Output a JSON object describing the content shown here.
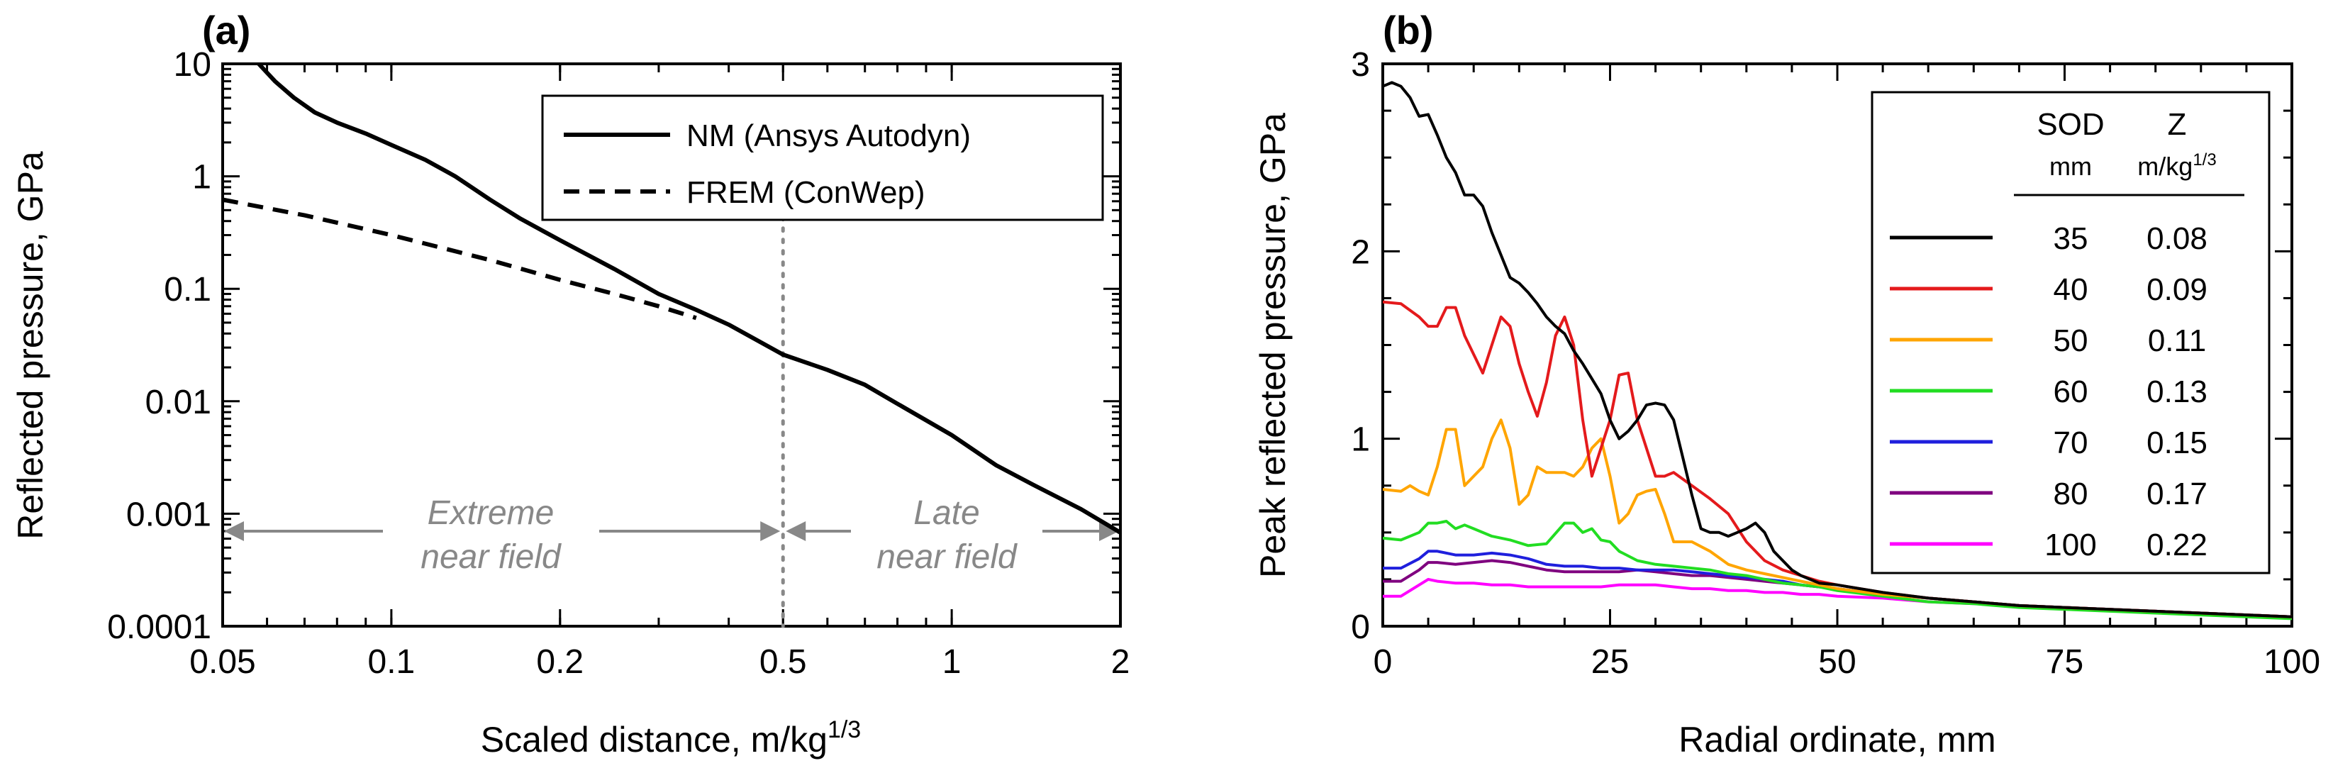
{
  "chart_data": [
    {
      "type": "line",
      "panel": "(a)",
      "xlabel": "Scaled distance, m/kg",
      "xlabel_sup": "1/3",
      "ylabel": "Reflected pressure, GPa",
      "xscale": "log",
      "yscale": "log",
      "xlim": [
        0.05,
        2
      ],
      "ylim": [
        0.0001,
        10
      ],
      "xticks": [
        0.05,
        0.1,
        0.2,
        0.5,
        1,
        2
      ],
      "xtick_labels": [
        "0.05",
        "0.1",
        "0.2",
        "0.5",
        "1",
        "2"
      ],
      "yticks": [
        0.0001,
        0.001,
        0.01,
        0.1,
        1,
        10
      ],
      "ytick_labels": [
        "0.0001",
        "0.001",
        "0.01",
        "0.1",
        "1",
        "10"
      ],
      "legend_position": "top-right",
      "series": [
        {
          "name": "NM (Ansys Autodyn)",
          "style": "solid",
          "color": "#000000",
          "x": [
            0.058,
            0.062,
            0.067,
            0.073,
            0.08,
            0.09,
            0.1,
            0.115,
            0.13,
            0.15,
            0.17,
            0.2,
            0.25,
            0.3,
            0.35,
            0.4,
            0.5,
            0.6,
            0.7,
            0.8,
            1.0,
            1.2,
            1.4,
            1.7,
            2.0
          ],
          "y": [
            10.0,
            7.0,
            5.0,
            3.7,
            3.0,
            2.4,
            1.9,
            1.4,
            1.0,
            0.62,
            0.42,
            0.27,
            0.15,
            0.09,
            0.065,
            0.048,
            0.026,
            0.019,
            0.014,
            0.0095,
            0.005,
            0.0027,
            0.0018,
            0.0011,
            0.00068
          ]
        },
        {
          "name": "FREM (ConWep)",
          "style": "dashed",
          "color": "#000000",
          "x": [
            0.05,
            0.07,
            0.1,
            0.15,
            0.2,
            0.25,
            0.3,
            0.35
          ],
          "y": [
            0.62,
            0.45,
            0.3,
            0.18,
            0.12,
            0.09,
            0.07,
            0.055
          ]
        }
      ],
      "reference_line": {
        "x": 0.5,
        "style": "dotted",
        "color": "#888888"
      },
      "annotations": [
        {
          "line1": "Extreme",
          "line2": "near field",
          "x_from": 0.05,
          "x_to": 0.5,
          "y": 0.0007
        },
        {
          "line1": "Late",
          "line2": "near field",
          "x_from": 0.5,
          "x_to": 2.0,
          "y": 0.0007
        }
      ]
    },
    {
      "type": "line",
      "panel": "(b)",
      "xlabel": "Radial ordinate, mm",
      "ylabel": "Peak reflected pressure, GPa",
      "xlim": [
        0,
        100
      ],
      "ylim": [
        0,
        3
      ],
      "xticks": [
        0,
        25,
        50,
        75,
        100
      ],
      "xtick_labels": [
        "0",
        "25",
        "50",
        "75",
        "100"
      ],
      "yticks": [
        0,
        1,
        2,
        3
      ],
      "ytick_labels": [
        "0",
        "1",
        "2",
        "3"
      ],
      "legend_position": "top-right",
      "legend_headers": {
        "col1": "SOD",
        "col1_unit": "mm",
        "col2": "Z",
        "col2_unit": "m/kg",
        "col2_unit_sup": "1/3"
      },
      "series": [
        {
          "sod": "35",
          "z": "0.08",
          "color": "#000000",
          "x": [
            0,
            1,
            2,
            3,
            4,
            5,
            6,
            7,
            8,
            9,
            10,
            11,
            12,
            13,
            14,
            15,
            16,
            17,
            18,
            19,
            20,
            21,
            22,
            23,
            24,
            25,
            26,
            27,
            28,
            29,
            30,
            31,
            32,
            33,
            34,
            35,
            36,
            37,
            38,
            39,
            40,
            41,
            42,
            43,
            44,
            45,
            46,
            47,
            48,
            50,
            55,
            60,
            65,
            70,
            75,
            80,
            85,
            90,
            95,
            100
          ],
          "y": [
            2.88,
            2.9,
            2.88,
            2.82,
            2.72,
            2.73,
            2.62,
            2.5,
            2.42,
            2.3,
            2.3,
            2.24,
            2.1,
            1.98,
            1.86,
            1.83,
            1.78,
            1.72,
            1.65,
            1.6,
            1.56,
            1.47,
            1.4,
            1.32,
            1.24,
            1.1,
            1.0,
            1.04,
            1.1,
            1.18,
            1.19,
            1.18,
            1.1,
            0.9,
            0.7,
            0.52,
            0.5,
            0.5,
            0.48,
            0.5,
            0.52,
            0.55,
            0.5,
            0.4,
            0.35,
            0.3,
            0.27,
            0.25,
            0.23,
            0.22,
            0.18,
            0.15,
            0.13,
            0.11,
            0.1,
            0.09,
            0.08,
            0.07,
            0.06,
            0.05
          ]
        },
        {
          "sod": "40",
          "z": "0.09",
          "color": "#e41a1c",
          "x": [
            0,
            2,
            4,
            5,
            6,
            7,
            8,
            9,
            10,
            11,
            12,
            13,
            14,
            15,
            16,
            17,
            18,
            19,
            20,
            21,
            22,
            23,
            24,
            25,
            26,
            27,
            28,
            29,
            30,
            31,
            32,
            34,
            36,
            38,
            40,
            42,
            44,
            46,
            48,
            50,
            55,
            60,
            65,
            70,
            75,
            80,
            85,
            90,
            95,
            100
          ],
          "y": [
            1.73,
            1.72,
            1.65,
            1.6,
            1.6,
            1.7,
            1.7,
            1.55,
            1.45,
            1.35,
            1.5,
            1.65,
            1.6,
            1.4,
            1.25,
            1.12,
            1.3,
            1.55,
            1.65,
            1.5,
            1.1,
            0.8,
            0.95,
            1.1,
            1.34,
            1.35,
            1.1,
            0.95,
            0.8,
            0.8,
            0.82,
            0.75,
            0.68,
            0.6,
            0.45,
            0.35,
            0.3,
            0.27,
            0.24,
            0.22,
            0.18,
            0.15,
            0.13,
            0.11,
            0.1,
            0.09,
            0.08,
            0.07,
            0.06,
            0.05
          ]
        },
        {
          "sod": "50",
          "z": "0.11",
          "color": "#ffa500",
          "x": [
            0,
            2,
            3,
            4,
            5,
            6,
            7,
            8,
            9,
            10,
            11,
            12,
            13,
            14,
            15,
            16,
            17,
            18,
            19,
            20,
            21,
            22,
            23,
            24,
            25,
            26,
            27,
            28,
            29,
            30,
            31,
            32,
            34,
            36,
            38,
            40,
            42,
            44,
            46,
            48,
            50,
            55,
            60,
            65,
            70,
            75,
            80,
            85,
            90,
            95,
            100
          ],
          "y": [
            0.73,
            0.72,
            0.75,
            0.72,
            0.7,
            0.85,
            1.05,
            1.05,
            0.75,
            0.8,
            0.85,
            1.0,
            1.1,
            0.95,
            0.65,
            0.7,
            0.85,
            0.82,
            0.82,
            0.82,
            0.8,
            0.85,
            0.95,
            1.0,
            0.8,
            0.55,
            0.6,
            0.7,
            0.72,
            0.73,
            0.6,
            0.45,
            0.45,
            0.4,
            0.33,
            0.3,
            0.28,
            0.26,
            0.24,
            0.22,
            0.2,
            0.17,
            0.15,
            0.13,
            0.11,
            0.1,
            0.09,
            0.08,
            0.07,
            0.06,
            0.05
          ]
        },
        {
          "sod": "60",
          "z": "0.13",
          "color": "#22dd22",
          "x": [
            0,
            2,
            4,
            5,
            6,
            7,
            8,
            9,
            10,
            12,
            14,
            16,
            18,
            20,
            21,
            22,
            23,
            24,
            25,
            26,
            28,
            30,
            32,
            34,
            36,
            38,
            40,
            42,
            44,
            46,
            48,
            50,
            55,
            60,
            65,
            70,
            75,
            80,
            85,
            90,
            95,
            100
          ],
          "y": [
            0.47,
            0.46,
            0.5,
            0.55,
            0.55,
            0.56,
            0.52,
            0.54,
            0.52,
            0.48,
            0.46,
            0.43,
            0.44,
            0.55,
            0.55,
            0.5,
            0.52,
            0.46,
            0.45,
            0.4,
            0.35,
            0.33,
            0.32,
            0.31,
            0.3,
            0.28,
            0.27,
            0.25,
            0.23,
            0.22,
            0.21,
            0.19,
            0.16,
            0.13,
            0.12,
            0.1,
            0.09,
            0.08,
            0.07,
            0.06,
            0.05,
            0.04
          ]
        },
        {
          "sod": "70",
          "z": "0.15",
          "color": "#1f1fdd",
          "x": [
            0,
            2,
            4,
            5,
            6,
            8,
            10,
            12,
            14,
            16,
            18,
            20,
            22,
            24,
            26,
            28,
            30,
            32,
            34,
            36,
            38,
            40,
            42,
            44,
            46,
            48,
            50,
            55,
            60,
            65,
            70,
            75,
            80,
            85,
            90,
            95,
            100
          ],
          "y": [
            0.31,
            0.31,
            0.36,
            0.4,
            0.4,
            0.38,
            0.38,
            0.39,
            0.38,
            0.36,
            0.33,
            0.32,
            0.32,
            0.31,
            0.31,
            0.3,
            0.3,
            0.3,
            0.29,
            0.28,
            0.27,
            0.26,
            0.25,
            0.24,
            0.22,
            0.21,
            0.2,
            0.17,
            0.15,
            0.13,
            0.11,
            0.1,
            0.09,
            0.08,
            0.07,
            0.06,
            0.05
          ]
        },
        {
          "sod": "80",
          "z": "0.17",
          "color": "#7f007f",
          "x": [
            0,
            2,
            4,
            5,
            6,
            8,
            10,
            12,
            14,
            16,
            18,
            20,
            22,
            24,
            26,
            28,
            30,
            32,
            34,
            36,
            38,
            40,
            42,
            44,
            46,
            48,
            50,
            55,
            60,
            65,
            70,
            75,
            80,
            85,
            90,
            95,
            100
          ],
          "y": [
            0.24,
            0.24,
            0.3,
            0.34,
            0.34,
            0.33,
            0.34,
            0.35,
            0.34,
            0.32,
            0.3,
            0.29,
            0.29,
            0.29,
            0.29,
            0.3,
            0.29,
            0.28,
            0.27,
            0.27,
            0.26,
            0.25,
            0.24,
            0.23,
            0.22,
            0.21,
            0.2,
            0.17,
            0.15,
            0.13,
            0.11,
            0.1,
            0.09,
            0.08,
            0.07,
            0.06,
            0.05
          ]
        },
        {
          "sod": "100",
          "z": "0.22",
          "color": "#ff00ff",
          "x": [
            0,
            2,
            4,
            5,
            6,
            8,
            10,
            12,
            14,
            16,
            18,
            20,
            22,
            24,
            26,
            28,
            30,
            32,
            34,
            36,
            38,
            40,
            42,
            44,
            46,
            48,
            50,
            55,
            60,
            65,
            70,
            75,
            80,
            85,
            90,
            95,
            100
          ],
          "y": [
            0.16,
            0.16,
            0.22,
            0.25,
            0.24,
            0.23,
            0.23,
            0.22,
            0.22,
            0.21,
            0.21,
            0.21,
            0.21,
            0.21,
            0.22,
            0.22,
            0.22,
            0.21,
            0.2,
            0.2,
            0.19,
            0.19,
            0.18,
            0.18,
            0.17,
            0.17,
            0.16,
            0.15,
            0.13,
            0.12,
            0.11,
            0.1,
            0.09,
            0.08,
            0.07,
            0.06,
            0.05
          ]
        }
      ]
    }
  ]
}
